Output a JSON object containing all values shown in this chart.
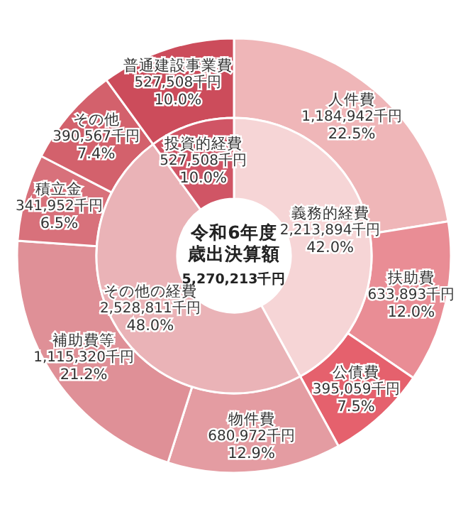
{
  "chart_data": [
    {
      "type": "donut",
      "title": "令和6年度歳出決算額",
      "subtitle": "5,270,213千円",
      "categories": [
        "義務的経費",
        "その他の経費",
        "投資的経費"
      ],
      "values": [
        2213894,
        2528811,
        527508
      ],
      "value_labels": [
        "2,213,894千円\n42.0%",
        "2,528,811千円\n48.0%",
        "527,508千円\n10.0%"
      ],
      "colors": [
        "#f6d5d6",
        "#eab3b7",
        "#d05565"
      ]
    },
    {
      "type": "donut",
      "categories": [
        "人件費",
        "扶助費",
        "公債費",
        "物件費",
        "補助費等",
        "積立金",
        "その他",
        "普通建設事業費"
      ],
      "values": [
        1184942,
        633893,
        395059,
        680972,
        1115320,
        341952,
        390567,
        527508
      ],
      "value_labels": [
        "1,184,942千円\n22.5%",
        "633,893千円\n12.0%",
        "395,059千円\n7.5%",
        "680,972千円\n12.9%",
        "1,115,320千円\n21.2%",
        "341,952千円\n6.5%",
        "390,567千円\n7.4%",
        "527,508千円\n10.0%"
      ],
      "colors": [
        "#efb6b8",
        "#e98d95",
        "#e5616d",
        "#e49ca2",
        "#df9097",
        "#d8717b",
        "#d3616c",
        "#cc4c5b"
      ]
    }
  ]
}
